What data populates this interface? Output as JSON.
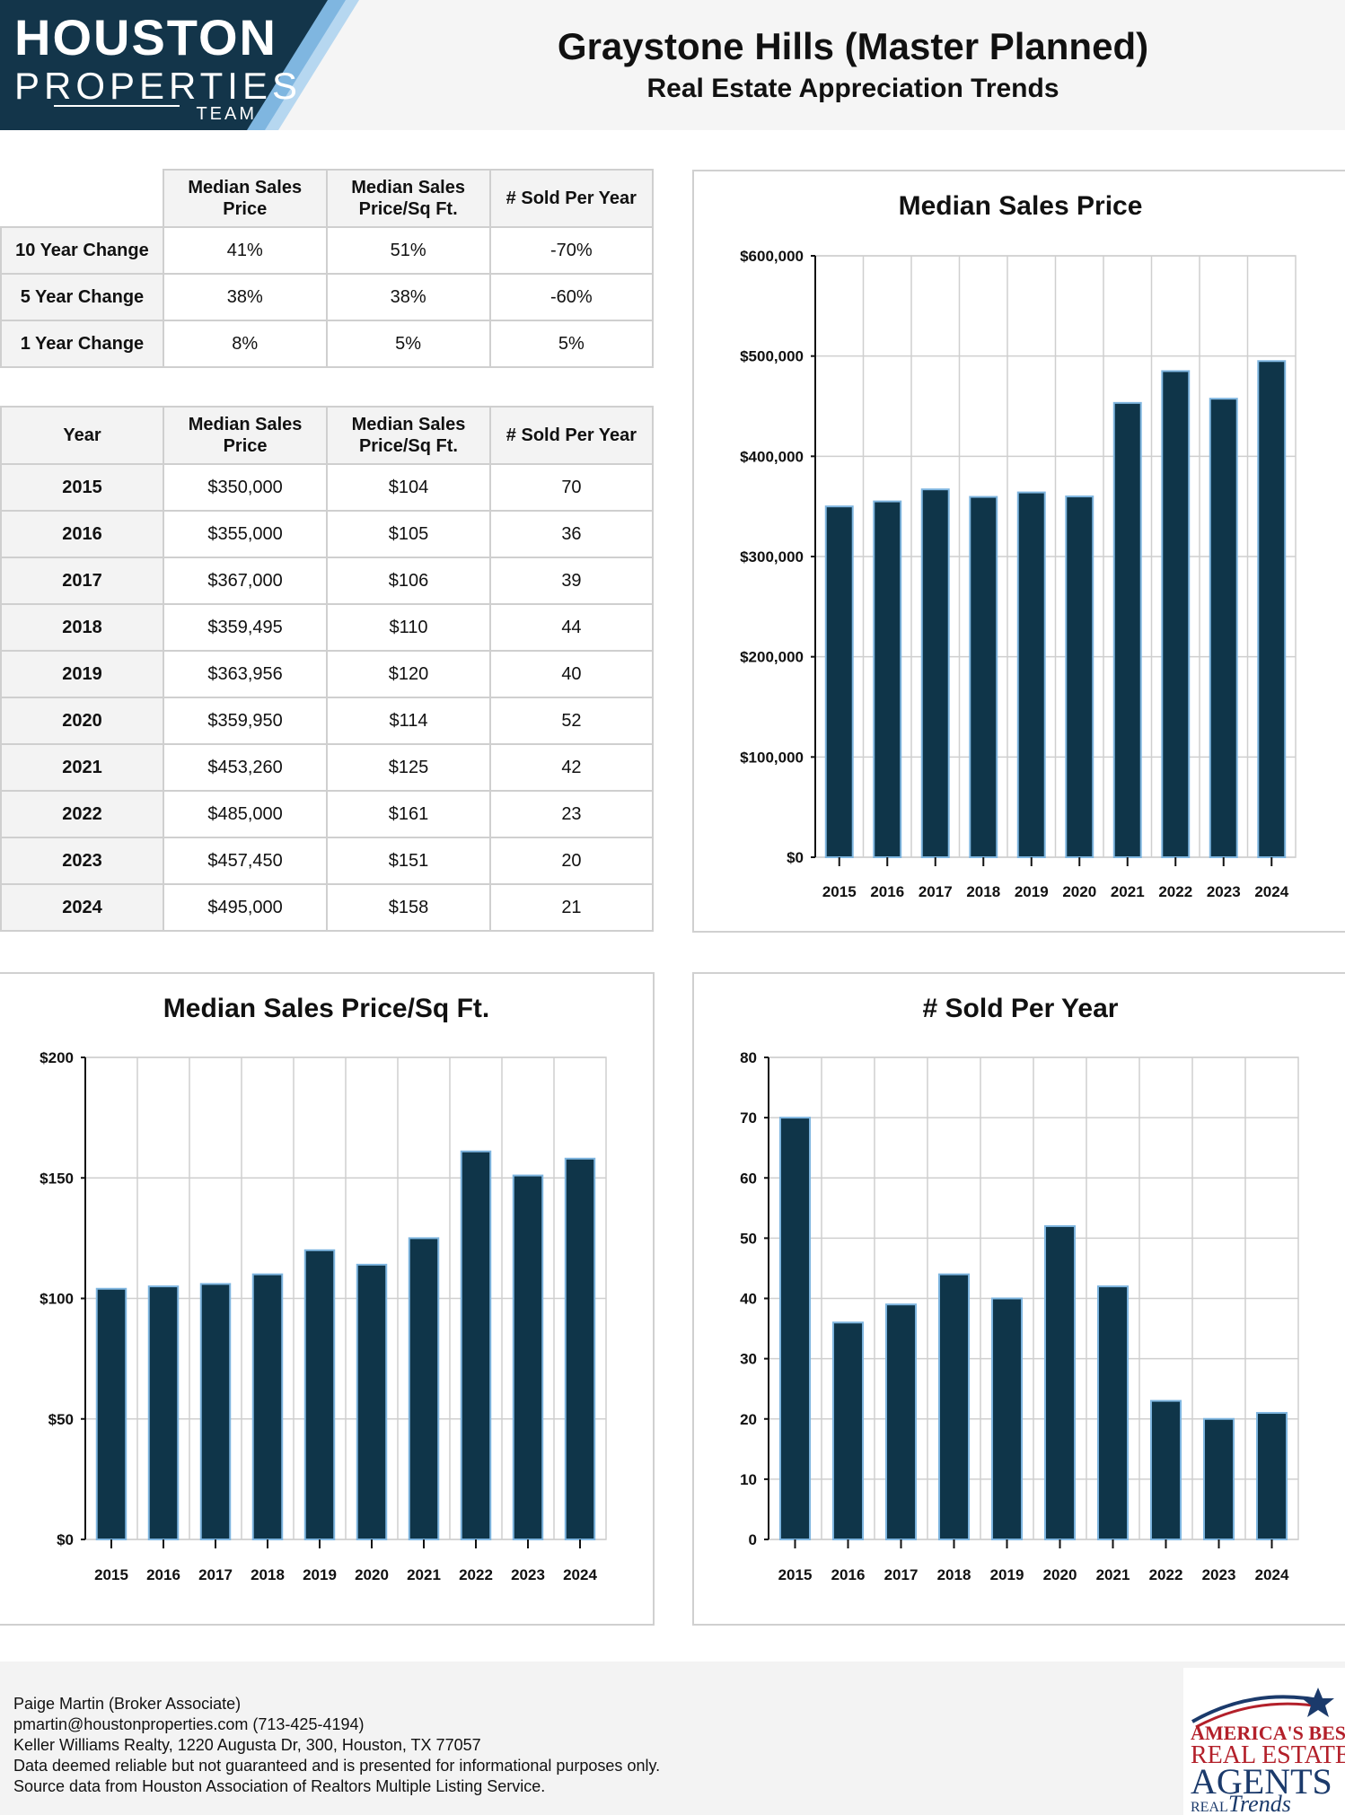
{
  "brand": {
    "line1": "HOUSTON",
    "line2": "PROPERTIES",
    "line3": "TEAM",
    "colors": {
      "navy": "#13354a",
      "light_blue": "#7fb6e0",
      "pale_blue": "#b6d7f0"
    }
  },
  "header": {
    "title": "Graystone Hills (Master Planned)",
    "subtitle": "Real Estate Appreciation Trends"
  },
  "change_table": {
    "headers": [
      "",
      "Median Sales Price",
      "Median Sales Price/Sq Ft.",
      "# Sold Per Year"
    ],
    "rows": [
      {
        "label": "10 Year Change",
        "price": "41%",
        "sqft": "51%",
        "sold": "-70%"
      },
      {
        "label": "5 Year Change",
        "price": "38%",
        "sqft": "38%",
        "sold": "-60%"
      },
      {
        "label": "1 Year Change",
        "price": "8%",
        "sqft": "5%",
        "sold": "5%"
      }
    ]
  },
  "year_table": {
    "headers": [
      "Year",
      "Median Sales Price",
      "Median Sales Price/Sq Ft.",
      "# Sold Per Year"
    ],
    "rows": [
      {
        "year": "2015",
        "price": "$350,000",
        "sqft": "$104",
        "sold": "70"
      },
      {
        "year": "2016",
        "price": "$355,000",
        "sqft": "$105",
        "sold": "36"
      },
      {
        "year": "2017",
        "price": "$367,000",
        "sqft": "$106",
        "sold": "39"
      },
      {
        "year": "2018",
        "price": "$359,495",
        "sqft": "$110",
        "sold": "44"
      },
      {
        "year": "2019",
        "price": "$363,956",
        "sqft": "$120",
        "sold": "40"
      },
      {
        "year": "2020",
        "price": "$359,950",
        "sqft": "$114",
        "sold": "52"
      },
      {
        "year": "2021",
        "price": "$453,260",
        "sqft": "$125",
        "sold": "42"
      },
      {
        "year": "2022",
        "price": "$485,000",
        "sqft": "$161",
        "sold": "23"
      },
      {
        "year": "2023",
        "price": "$457,450",
        "sqft": "$151",
        "sold": "20"
      },
      {
        "year": "2024",
        "price": "$495,000",
        "sqft": "$158",
        "sold": "21"
      }
    ]
  },
  "chart_data": [
    {
      "id": "price",
      "type": "bar",
      "title": "Median Sales Price",
      "categories": [
        "2015",
        "2016",
        "2017",
        "2018",
        "2019",
        "2020",
        "2021",
        "2022",
        "2023",
        "2024"
      ],
      "values": [
        350000,
        355000,
        367000,
        359495,
        363956,
        359950,
        453260,
        485000,
        457450,
        495000
      ],
      "ylim": [
        0,
        600000
      ],
      "yticks": [
        0,
        100000,
        200000,
        300000,
        400000,
        500000,
        600000
      ],
      "ytick_labels": [
        "$0",
        "$100,000",
        "$200,000",
        "$300,000",
        "$400,000",
        "$500,000",
        "$600,000"
      ],
      "grid": true,
      "bar_color": "#0f3549",
      "bar_edge": "#7fb6e0"
    },
    {
      "id": "sqft",
      "type": "bar",
      "title": "Median Sales Price/Sq Ft.",
      "categories": [
        "2015",
        "2016",
        "2017",
        "2018",
        "2019",
        "2020",
        "2021",
        "2022",
        "2023",
        "2024"
      ],
      "values": [
        104,
        105,
        106,
        110,
        120,
        114,
        125,
        161,
        151,
        158
      ],
      "ylim": [
        0,
        200
      ],
      "yticks": [
        0,
        50,
        100,
        150,
        200
      ],
      "ytick_labels": [
        "$0",
        "$50",
        "$100",
        "$150",
        "$200"
      ],
      "grid": true,
      "bar_color": "#0f3549",
      "bar_edge": "#7fb6e0"
    },
    {
      "id": "sold",
      "type": "bar",
      "title": "# Sold Per Year",
      "categories": [
        "2015",
        "2016",
        "2017",
        "2018",
        "2019",
        "2020",
        "2021",
        "2022",
        "2023",
        "2024"
      ],
      "values": [
        70,
        36,
        39,
        44,
        40,
        52,
        42,
        23,
        20,
        21
      ],
      "ylim": [
        0,
        80
      ],
      "yticks": [
        0,
        10,
        20,
        30,
        40,
        50,
        60,
        70,
        80
      ],
      "ytick_labels": [
        "0",
        "10",
        "20",
        "30",
        "40",
        "50",
        "60",
        "70",
        "80"
      ],
      "grid": true,
      "bar_color": "#0f3549",
      "bar_edge": "#7fb6e0"
    }
  ],
  "footer": {
    "name": "Paige Martin (Broker Associate)",
    "contact": "pmartin@houstonproperties.com (713-425-4194)",
    "office": "Keller Williams Realty, 1220 Augusta Dr, 300, Houston, TX 77057",
    "disclaimer": "Data deemed reliable but not guaranteed and is presented for informational purposes only.",
    "source": "Source data from Houston Association of Realtors Multiple Listing Service."
  },
  "badge": {
    "line1": "AMERICA'S BEST",
    "line2": "REAL ESTATE",
    "line3": "AGENTS",
    "line4": "REAL",
    "line5": "Trends",
    "colors": {
      "red": "#b3202a",
      "navy": "#1b3a6b"
    }
  }
}
